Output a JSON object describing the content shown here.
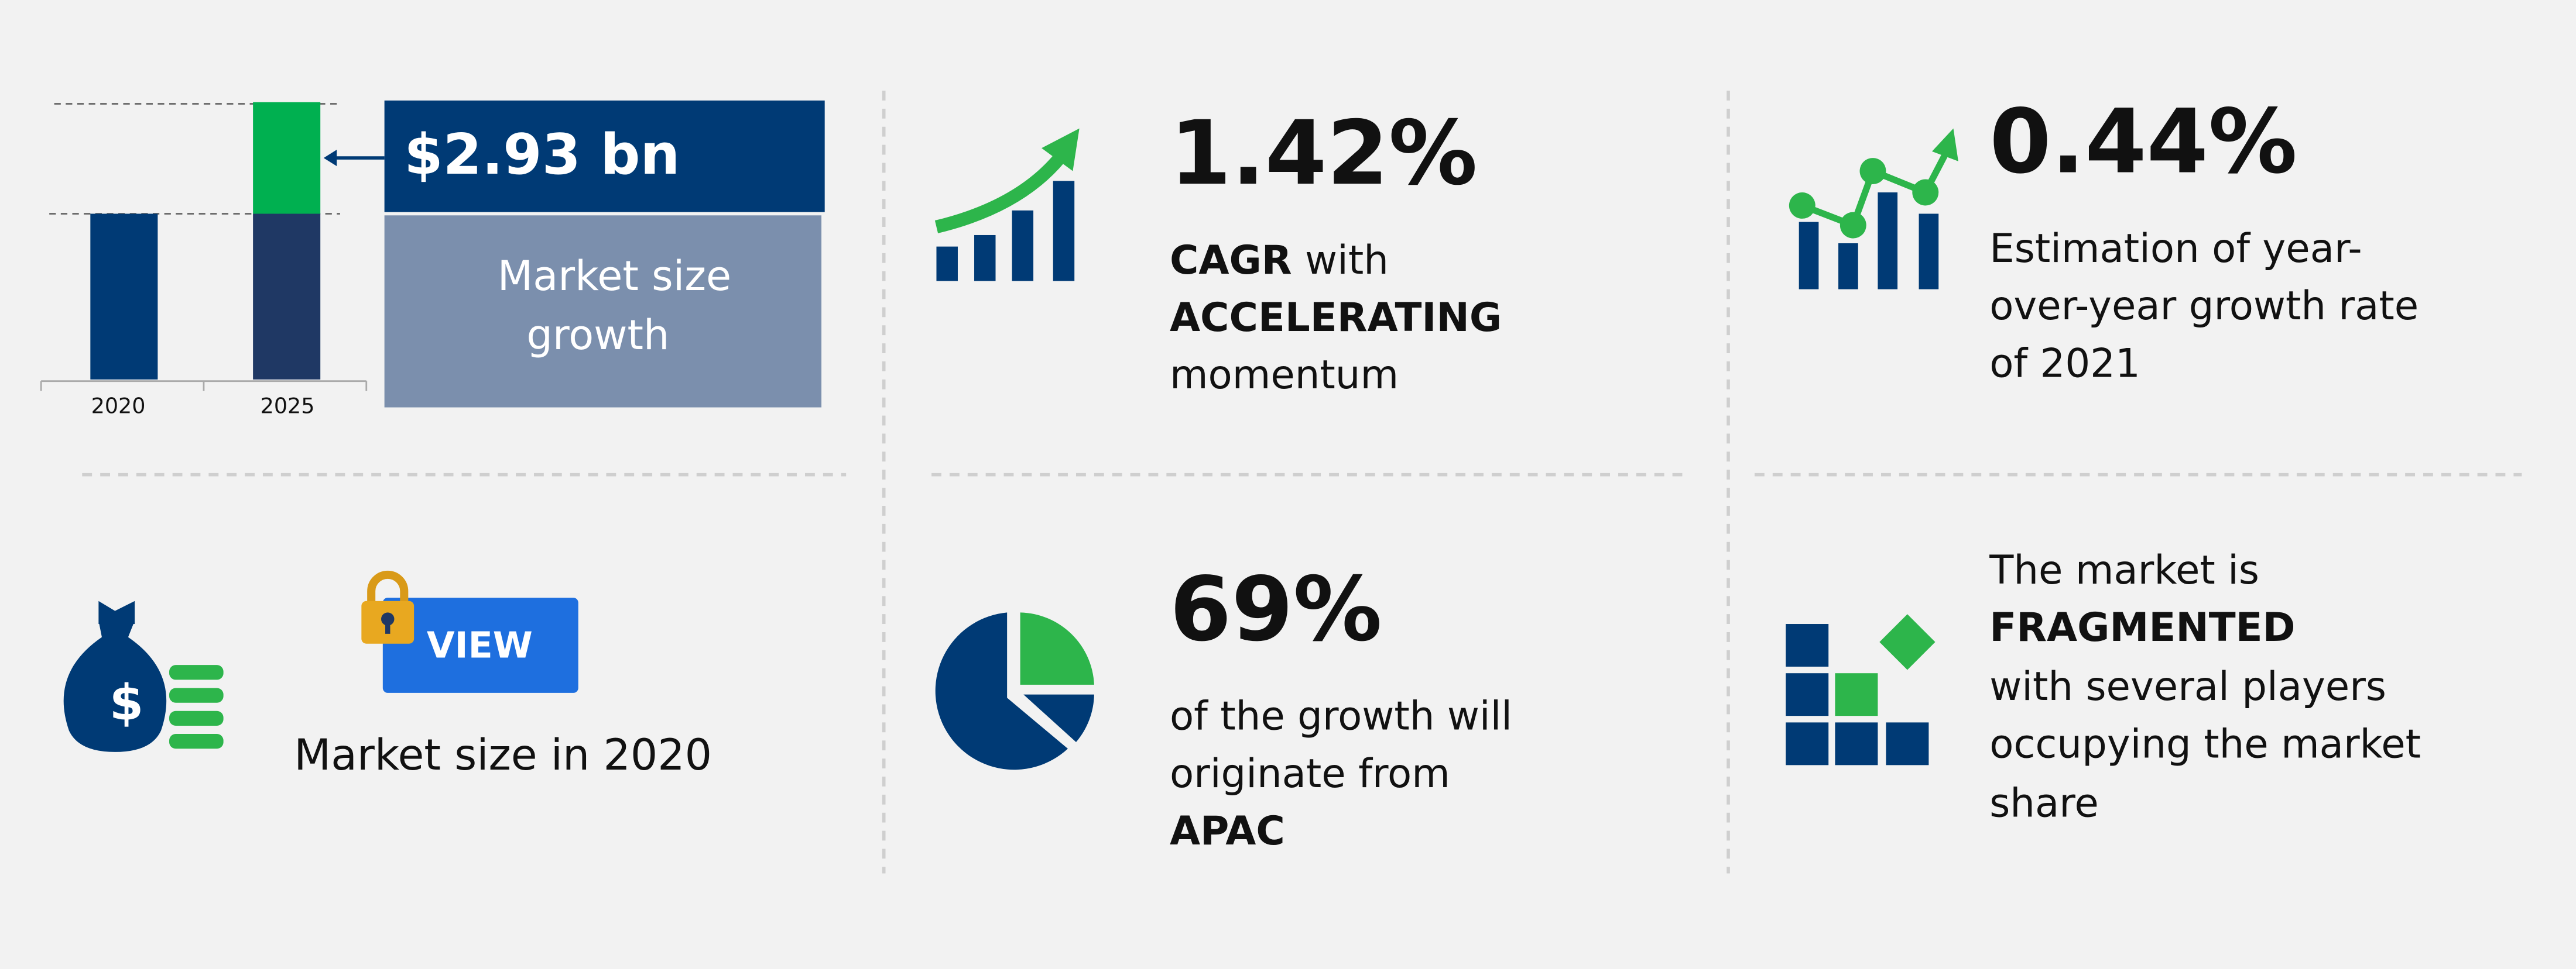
{
  "market_growth": {
    "categories": [
      "2020",
      "2025"
    ],
    "value": "$2.93 bn",
    "label_lines": [
      "Market size",
      "growth"
    ]
  },
  "market_size": {
    "button": "VIEW",
    "label": "Market size in 2020"
  },
  "cagr": {
    "value": "1.42%",
    "term": "CAGR",
    "term_rest": "with",
    "emphasis": "ACCELERATING",
    "tail": "momentum"
  },
  "yoy": {
    "value": "0.44%",
    "lines": [
      "Estimation of year-",
      "over-year growth rate",
      "of 2021"
    ]
  },
  "region": {
    "value": "69%",
    "lines": [
      "of the growth will",
      "originate from"
    ],
    "emphasis": "APAC"
  },
  "competition": {
    "intro": "The market is",
    "emphasis": "FRAGMENTED",
    "lines": [
      "with several players",
      "occupying the market",
      "share"
    ]
  }
}
